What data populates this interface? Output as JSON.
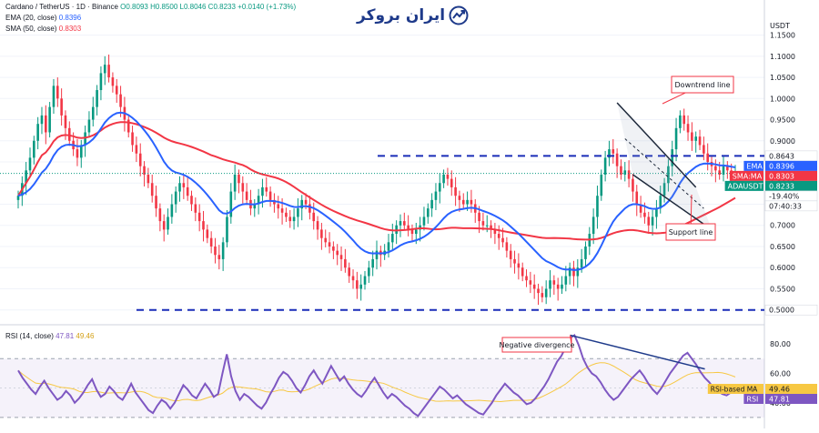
{
  "header": {
    "symbol": "Cardano / TetherUS · 1D · Binance",
    "ohlc": "O0.8093 H0.8500 L0.8046 C0.8233 +0.0140 (+1.73%)",
    "ema_label": "EMA (20, close)",
    "ema_value": "0.8396",
    "sma_label": "SMA (50, close)",
    "sma_value": "0.8303",
    "rsi_label": "RSI (14, close)",
    "rsi_value": "47.81",
    "rsi_ma_value": "49.46"
  },
  "logo": {
    "text": "ایران بروکر",
    "icon": "chart-arrow-icon"
  },
  "chart_data": [
    {
      "type": "candlestick",
      "currency": "USDT",
      "ylim": [
        0.48,
        1.19
      ],
      "y_ticks": [
        "1.1500",
        "1.1000",
        "1.0500",
        "1.0000",
        "0.9500",
        "0.9000",
        "0.8500",
        "0.8000",
        "0.7500",
        "0.7000",
        "0.6500",
        "0.6000",
        "0.5500",
        "0.5000"
      ],
      "close": [
        0.77,
        0.8,
        0.83,
        0.86,
        0.9,
        0.94,
        0.96,
        0.92,
        0.98,
        1.03,
        1.0,
        0.96,
        0.93,
        0.9,
        0.88,
        0.86,
        0.89,
        0.92,
        0.95,
        0.98,
        1.02,
        1.06,
        1.08,
        1.05,
        1.03,
        1.01,
        0.98,
        0.95,
        0.92,
        0.89,
        0.87,
        0.84,
        0.82,
        0.8,
        0.77,
        0.74,
        0.71,
        0.69,
        0.72,
        0.75,
        0.78,
        0.8,
        0.79,
        0.77,
        0.75,
        0.73,
        0.71,
        0.69,
        0.67,
        0.65,
        0.63,
        0.62,
        0.66,
        0.72,
        0.78,
        0.82,
        0.8,
        0.78,
        0.76,
        0.74,
        0.75,
        0.77,
        0.79,
        0.78,
        0.76,
        0.75,
        0.74,
        0.73,
        0.72,
        0.71,
        0.72,
        0.74,
        0.76,
        0.75,
        0.73,
        0.71,
        0.69,
        0.67,
        0.66,
        0.65,
        0.64,
        0.63,
        0.62,
        0.6,
        0.58,
        0.57,
        0.55,
        0.56,
        0.58,
        0.6,
        0.62,
        0.64,
        0.63,
        0.64,
        0.66,
        0.68,
        0.7,
        0.71,
        0.7,
        0.69,
        0.68,
        0.69,
        0.7,
        0.72,
        0.74,
        0.76,
        0.78,
        0.8,
        0.82,
        0.81,
        0.79,
        0.77,
        0.76,
        0.75,
        0.76,
        0.75,
        0.73,
        0.71,
        0.7,
        0.7,
        0.69,
        0.68,
        0.67,
        0.66,
        0.64,
        0.62,
        0.61,
        0.6,
        0.58,
        0.57,
        0.56,
        0.55,
        0.54,
        0.53,
        0.55,
        0.57,
        0.56,
        0.55,
        0.56,
        0.58,
        0.6,
        0.58,
        0.6,
        0.62,
        0.65,
        0.68,
        0.72,
        0.77,
        0.82,
        0.86,
        0.88,
        0.87,
        0.84,
        0.82,
        0.83,
        0.81,
        0.78,
        0.75,
        0.73,
        0.72,
        0.7,
        0.72,
        0.74,
        0.77,
        0.8,
        0.84,
        0.88,
        0.93,
        0.96,
        0.94,
        0.92,
        0.9,
        0.91,
        0.89,
        0.87,
        0.85,
        0.84,
        0.83,
        0.82,
        0.84,
        0.83,
        0.82,
        0.823
      ],
      "ema": {
        "label": "EMA",
        "period": 20,
        "color": "#2962ff"
      },
      "sma": {
        "label": "SMA:MA",
        "period": 50,
        "color": "#f23645"
      },
      "resistance_level": 0.8643,
      "support_level": 0.5,
      "downtrend_line": {
        "from": [
          152,
          0.99
        ],
        "to": [
          172,
          0.79
        ]
      },
      "support_line": {
        "from": [
          156,
          0.82
        ],
        "to": [
          176,
          0.69
        ]
      },
      "annotations": [
        "Downtrend line",
        "Support line"
      ],
      "price_labels": [
        {
          "text": "0.8643",
          "color": "#131722",
          "bg": "#ffffff"
        },
        {
          "text": "EMA",
          "value": "0.8396",
          "color": "#ffffff",
          "bg": "#2962ff"
        },
        {
          "text": "SMA:MA",
          "value": "0.8303",
          "color": "#ffffff",
          "bg": "#f23645"
        },
        {
          "text": "ADAUSDT",
          "value": "0.8233",
          "color": "#ffffff",
          "bg": "#089981"
        },
        {
          "text": "-19.40%",
          "color": "#131722",
          "bg": "#ffffff"
        },
        {
          "text": "07:40:33",
          "color": "#131722",
          "bg": "#ffffff"
        },
        {
          "text": "0.5000",
          "color": "#131722",
          "bg": "#ffffff"
        }
      ]
    },
    {
      "type": "line",
      "title": "RSI (14, close)",
      "ylim": [
        25,
        90
      ],
      "y_ticks": [
        "80.00",
        "60.00",
        "40.00"
      ],
      "band": [
        30,
        70
      ],
      "values": [
        62,
        57,
        53,
        49,
        46,
        51,
        55,
        50,
        46,
        42,
        44,
        48,
        45,
        40,
        43,
        47,
        52,
        56,
        49,
        44,
        46,
        51,
        48,
        44,
        42,
        47,
        53,
        47,
        43,
        39,
        35,
        33,
        38,
        42,
        40,
        36,
        40,
        46,
        52,
        49,
        45,
        43,
        48,
        53,
        49,
        44,
        46,
        60,
        73,
        58,
        48,
        42,
        46,
        44,
        41,
        38,
        36,
        40,
        46,
        51,
        57,
        61,
        59,
        55,
        50,
        47,
        52,
        58,
        62,
        57,
        53,
        59,
        65,
        60,
        55,
        58,
        53,
        49,
        46,
        44,
        48,
        53,
        57,
        52,
        47,
        43,
        46,
        44,
        41,
        38,
        36,
        33,
        31,
        35,
        39,
        43,
        47,
        51,
        49,
        46,
        43,
        45,
        42,
        39,
        37,
        35,
        33,
        32,
        36,
        40,
        45,
        49,
        53,
        50,
        47,
        45,
        42,
        39,
        40,
        43,
        47,
        51,
        56,
        62,
        68,
        72,
        78,
        84,
        86,
        79,
        70,
        64,
        60,
        58,
        54,
        49,
        45,
        42,
        44,
        48,
        52,
        56,
        59,
        62,
        58,
        53,
        49,
        46,
        50,
        55,
        60,
        64,
        68,
        72,
        74,
        70,
        66,
        61,
        57,
        54,
        50,
        48,
        46,
        45,
        47,
        48
      ],
      "ma": {
        "label": "RSI-based MA",
        "value": "49.46",
        "color": "#f7c843"
      },
      "rsi_label": {
        "text": "RSI",
        "value": "47.81",
        "color": "#ffffff",
        "bg": "#7e57c2"
      },
      "divergence_line": {
        "from": [
          127,
          86
        ],
        "to": [
          158,
          63
        ]
      },
      "annotations": [
        "Negative divergence"
      ]
    }
  ]
}
